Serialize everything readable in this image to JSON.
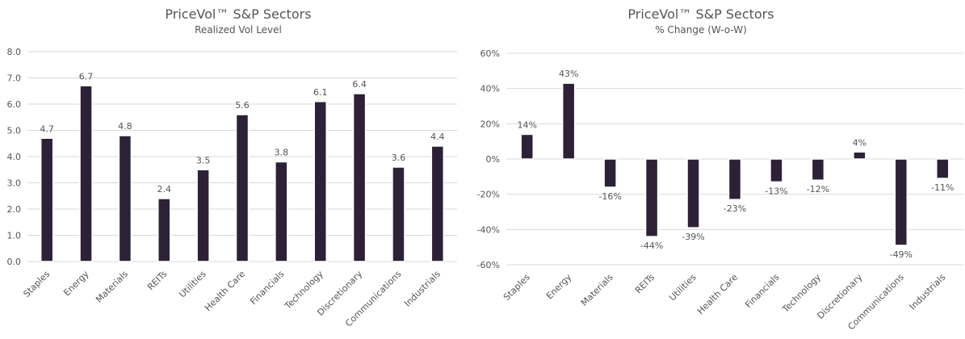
{
  "chart_data": [
    {
      "type": "bar",
      "title": "PriceVol™ S&P Sectors",
      "subtitle": "Realized Vol Level",
      "categories": [
        "Staples",
        "Energy",
        "Materials",
        "REITs",
        "Utilities",
        "Health Care",
        "Financials",
        "Technology",
        "Discretionary",
        "Communications",
        "Industrials"
      ],
      "values": [
        4.7,
        6.7,
        4.8,
        2.4,
        3.5,
        5.6,
        3.8,
        6.1,
        6.4,
        3.6,
        4.4
      ],
      "data_labels": [
        "4.7",
        "6.7",
        "4.8",
        "2.4",
        "3.5",
        "5.6",
        "3.8",
        "6.1",
        "6.4",
        "3.6",
        "4.4"
      ],
      "yticks": [
        0,
        1,
        2,
        3,
        4,
        5,
        6,
        7,
        8
      ],
      "ytick_labels": [
        "0.0",
        "1.0",
        "2.0",
        "3.0",
        "4.0",
        "5.0",
        "6.0",
        "7.0",
        "8.0"
      ],
      "ylim": [
        0,
        8
      ],
      "grid": true,
      "xlabel": "",
      "ylabel": "",
      "bar_color": "#2d2137"
    },
    {
      "type": "bar",
      "title": "PriceVol™ S&P Sectors",
      "subtitle": "% Change (W-o-W)",
      "categories": [
        "Staples",
        "Energy",
        "Materials",
        "REITs",
        "Utilities",
        "Health Care",
        "Financials",
        "Technology",
        "Discretionary",
        "Communications",
        "Industrials"
      ],
      "values": [
        14,
        43,
        -16,
        -44,
        -39,
        -23,
        -13,
        -12,
        4,
        -49,
        -11
      ],
      "data_labels": [
        "14%",
        "43%",
        "-16%",
        "-44%",
        "-39%",
        "-23%",
        "-13%",
        "-12%",
        "4%",
        "-49%",
        "-11%"
      ],
      "yticks": [
        -60,
        -40,
        -20,
        0,
        20,
        40,
        60
      ],
      "ytick_labels": [
        "-60%",
        "-40%",
        "-20%",
        "0%",
        "20%",
        "40%",
        "60%"
      ],
      "ylim": [
        -60,
        60
      ],
      "grid": true,
      "xlabel": "",
      "ylabel": "",
      "bar_color": "#2d2137"
    }
  ]
}
